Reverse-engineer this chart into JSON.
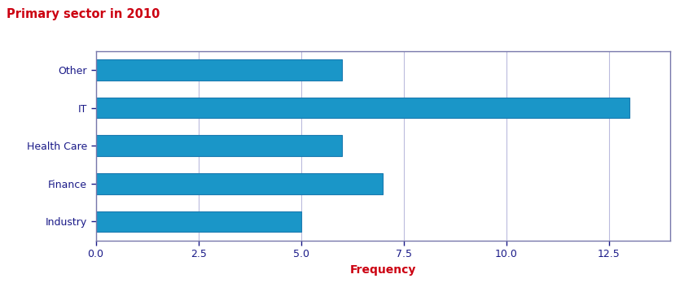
{
  "title": "Primary sector in 2010",
  "title_color": "#cc0011",
  "xlabel": "Frequency",
  "xlabel_color": "#cc0011",
  "categories": [
    "Industry",
    "Finance",
    "Health Care",
    "IT",
    "Other"
  ],
  "values": [
    5.0,
    7.0,
    6.0,
    13.0,
    6.0
  ],
  "bar_color": "#1a96c8",
  "bar_edge_color": "#1a7ab0",
  "xlim": [
    0,
    14.0
  ],
  "xticks": [
    0.0,
    2.5,
    5.0,
    7.5,
    10.0,
    12.5
  ],
  "tick_label_color": "#1a1a88",
  "spine_color": "#7777aa",
  "grid_color": "#bbbbdd",
  "background_color": "#ffffff",
  "title_fontsize": 10.5,
  "xlabel_fontsize": 10,
  "tick_fontsize": 9,
  "bar_height": 0.55
}
